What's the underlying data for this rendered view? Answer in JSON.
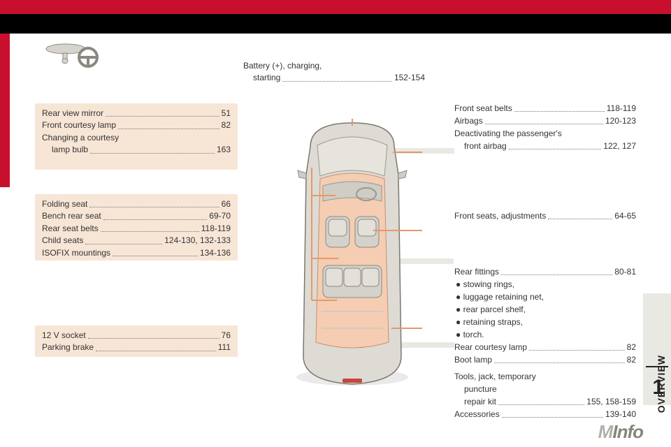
{
  "colors": {
    "red": "#c8102e",
    "black": "#000000",
    "peach": "#f7e5d6",
    "grey_panel": "#e9e9e3",
    "text": "#333333",
    "car_body": "#d8d6cf",
    "car_line": "#6b6b66",
    "callout_line": "#e9976b"
  },
  "top_center": {
    "line1_label": "Battery (+), charging,",
    "line2_label": "starting",
    "line2_page": "152-154"
  },
  "left": {
    "box1": [
      {
        "label": "Rear view mirror",
        "page": "51"
      },
      {
        "label": "Front courtesy lamp",
        "page": "82"
      },
      {
        "label": "Changing a courtesy",
        "page": ""
      },
      {
        "label": "lamp bulb",
        "page": "163",
        "indent": true
      }
    ],
    "box2": [
      {
        "label": "Folding seat",
        "page": "66"
      },
      {
        "label": "Bench rear seat",
        "page": "69-70"
      },
      {
        "label": "Rear seat belts",
        "page": "118-119"
      },
      {
        "label": "Child seats",
        "page": "124-130, 132-133"
      },
      {
        "label": "ISOFIX mountings",
        "page": "134-136"
      }
    ],
    "box3": [
      {
        "label": "12 V socket",
        "page": "76"
      },
      {
        "label": "Parking brake",
        "page": "111"
      }
    ]
  },
  "right": {
    "r1": [
      {
        "label": "Front seat belts",
        "page": "118-119"
      },
      {
        "label": "Airbags",
        "page": "120-123"
      },
      {
        "label": "Deactivating the passenger's",
        "page": ""
      },
      {
        "label": "front airbag",
        "page": "122, 127",
        "indent": true
      }
    ],
    "r2": [
      {
        "label": "Front seats, adjustments",
        "page": "64-65"
      }
    ],
    "r3": [
      {
        "label": "Rear fittings",
        "page": "80-81"
      },
      {
        "bullet": "● stowing rings,"
      },
      {
        "bullet": "● luggage retaining net,"
      },
      {
        "bullet": "● rear parcel shelf,"
      },
      {
        "bullet": "● retaining straps,"
      },
      {
        "bullet": "● torch."
      },
      {
        "label": "Rear courtesy lamp",
        "page": "82"
      },
      {
        "label": "Boot lamp",
        "page": "82"
      },
      {
        "spacer": true
      },
      {
        "label": "Tools, jack, temporary",
        "page": ""
      },
      {
        "label": "puncture",
        "page": "",
        "indent": true
      },
      {
        "label": "repair kit",
        "page": "155, 158-159",
        "indent": true
      },
      {
        "label": "Accessories",
        "page": "139-140"
      }
    ]
  },
  "tab": {
    "label": "OVERVIEW",
    "num": "1"
  },
  "footer": {
    "a": "M",
    "b": "Info"
  }
}
